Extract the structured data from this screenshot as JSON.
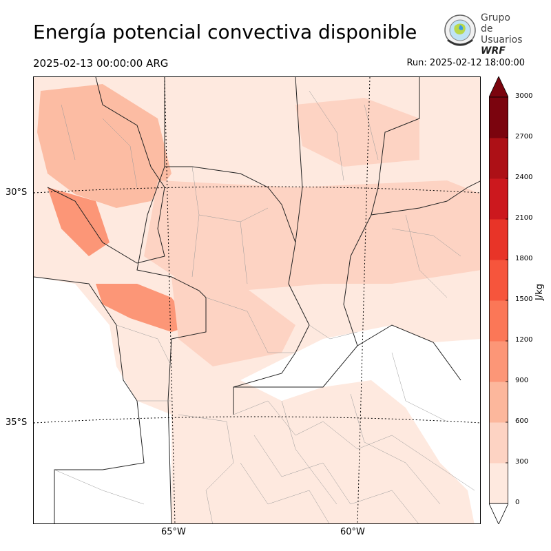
{
  "header": {
    "title": "Energía potencial convectiva disponible",
    "valid_time": "2025-02-13 00:00:00 ARG",
    "run_time": "Run: 2025-02-12 18:00:00"
  },
  "logo": {
    "line1": "Grupo de",
    "line2": "Usuarios",
    "line3": "WRF"
  },
  "map": {
    "lat_labels": [
      "30°S",
      "35°S"
    ],
    "lon_labels": [
      "65°W",
      "60°W"
    ]
  },
  "colorbar": {
    "unit": "J/kg",
    "ticks": [
      "3000",
      "2700",
      "2400",
      "2100",
      "1800",
      "1500",
      "1200",
      "900",
      "600",
      "300",
      "0"
    ],
    "colors": [
      "#fee9df",
      "#fdd3c3",
      "#fcb79c",
      "#fc9677",
      "#fb7757",
      "#f6553c",
      "#e83428",
      "#cc181e",
      "#ad1016",
      "#7b040e"
    ]
  }
}
